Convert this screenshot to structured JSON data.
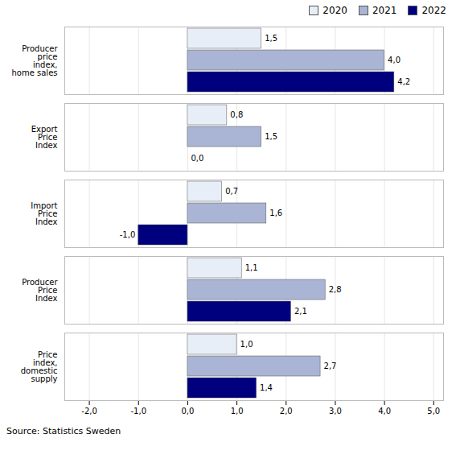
{
  "chart_data": {
    "type": "bar",
    "orientation": "horizontal",
    "categories": [
      "Price\nindex,\ndomestic\nsupply",
      "Producer\nPrice\nIndex",
      "Import\nPrice\nIndex",
      "Export\nPrice\nIndex",
      "Producer\nprice\nindex,\nhome sales"
    ],
    "series": [
      {
        "name": "2020",
        "color": "#e8eef8",
        "values": [
          1.0,
          1.1,
          0.7,
          0.8,
          1.5
        ],
        "value_labels": [
          "1,0",
          "1,1",
          "0,7",
          "0,8",
          "1,5"
        ]
      },
      {
        "name": "2021",
        "color": "#aab4d4",
        "values": [
          2.7,
          2.8,
          1.6,
          1.5,
          4.0
        ],
        "value_labels": [
          "2,7",
          "2,8",
          "1,6",
          "1,5",
          "4,0"
        ]
      },
      {
        "name": "2022",
        "color": "#00007f",
        "values": [
          1.4,
          2.1,
          -1.0,
          0.0,
          4.2
        ],
        "value_labels": [
          "1,4",
          "2,1",
          "-1,0",
          "0,0",
          "4,2"
        ]
      }
    ],
    "xlim": [
      -2.5,
      5.2
    ],
    "xticks": [
      {
        "value": -2.0,
        "label": "-2,0"
      },
      {
        "value": -1.0,
        "label": "-1,0"
      },
      {
        "value": 0.0,
        "label": "0,0"
      },
      {
        "value": 1.0,
        "label": "1,0"
      },
      {
        "value": 2.0,
        "label": "2,0"
      },
      {
        "value": 3.0,
        "label": "3,0"
      },
      {
        "value": 4.0,
        "label": "4,0"
      },
      {
        "value": 5.0,
        "label": "5,0"
      }
    ],
    "grid": true,
    "data_labels": true,
    "legend": "upper right",
    "caption": "Source: Statistics Sweden"
  }
}
